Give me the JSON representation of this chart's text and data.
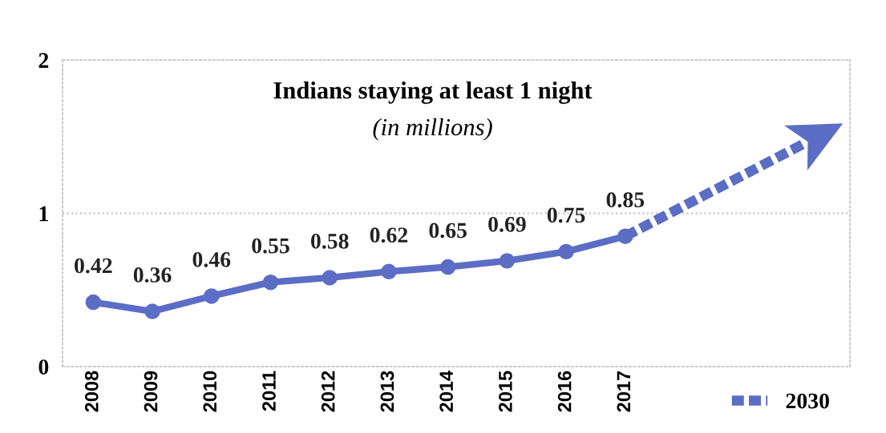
{
  "chart_data": {
    "type": "line",
    "title": "Indians staying at least 1 night",
    "subtitle": "(in millions)",
    "categories": [
      "2008",
      "2009",
      "2010",
      "2011",
      "2012",
      "2013",
      "2014",
      "2015",
      "2016",
      "2017",
      null,
      null,
      null
    ],
    "series": [
      {
        "color": "#5b6dc4",
        "values": [
          0.42,
          0.36,
          0.46,
          0.55,
          0.58,
          0.62,
          0.65,
          0.69,
          0.75,
          0.85,
          null,
          null,
          null
        ],
        "value_labels": [
          "0.42",
          "0.36",
          "0.46",
          "0.55",
          "0.58",
          "0.62",
          "0.65",
          "0.69",
          "0.75",
          "0.85",
          null,
          null,
          null
        ],
        "marker": "circle"
      },
      {
        "name": "2030",
        "color": "#5b6dc4",
        "line_style": "dotted",
        "marker": "none",
        "values": [
          null,
          null,
          null,
          null,
          null,
          null,
          null,
          null,
          null,
          0.85,
          null,
          null,
          1.45
        ]
      }
    ],
    "ylim": [
      0,
      2
    ],
    "yticks": [
      0,
      1,
      2
    ],
    "grid": "y",
    "legend": "bottom right"
  }
}
